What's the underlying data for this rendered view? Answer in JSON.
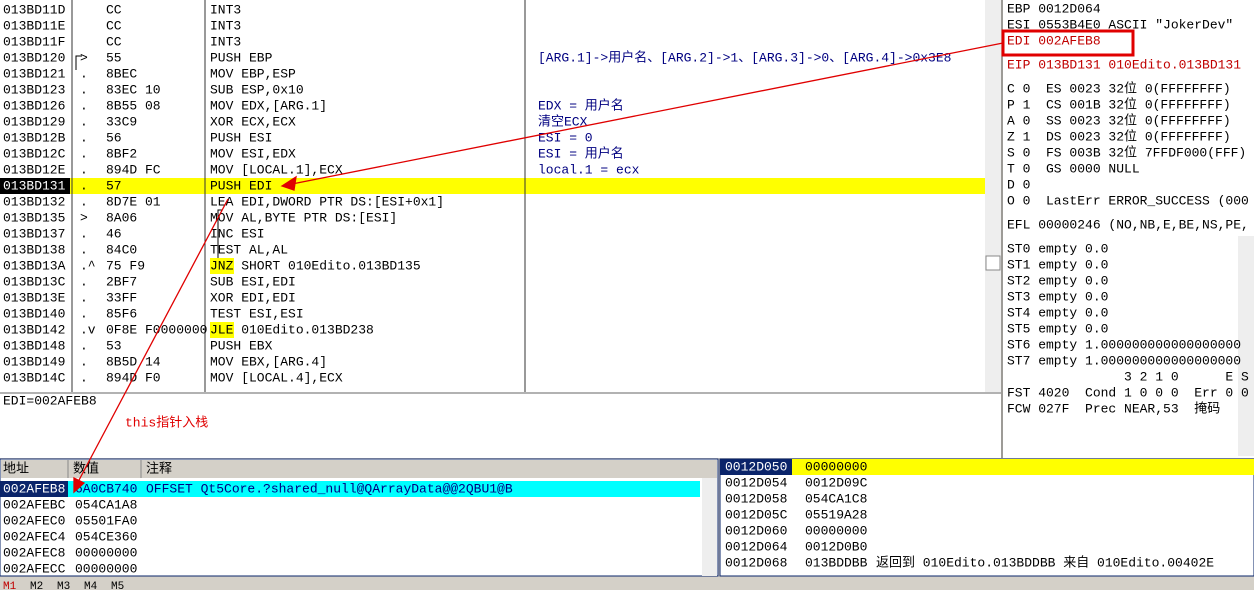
{
  "disasm": {
    "rows": [
      [
        "013BD11D",
        "",
        "CC",
        "INT3",
        ""
      ],
      [
        "013BD11E",
        "",
        "CC",
        "INT3",
        ""
      ],
      [
        "013BD11F",
        "",
        "CC",
        "INT3",
        ""
      ],
      [
        "013BD120",
        ">",
        "55",
        "PUSH EBP",
        "[ARG.1]->用户名、[ARG.2]->1、[ARG.3]->0、[ARG.4]->0x3E8"
      ],
      [
        "013BD121",
        ".",
        "8BEC",
        "MOV EBP,ESP",
        ""
      ],
      [
        "013BD123",
        ".",
        "83EC 10",
        "SUB ESP,0x10",
        ""
      ],
      [
        "013BD126",
        ".",
        "8B55 08",
        "MOV EDX,[ARG.1]",
        "EDX = 用户名"
      ],
      [
        "013BD129",
        ".",
        "33C9",
        "XOR ECX,ECX",
        "清空ECX"
      ],
      [
        "013BD12B",
        ".",
        "56",
        "PUSH ESI",
        "ESI = 0"
      ],
      [
        "013BD12C",
        ".",
        "8BF2",
        "MOV ESI,EDX",
        "ESI = 用户名"
      ],
      [
        "013BD12E",
        ".",
        "894D FC",
        "MOV [LOCAL.1],ECX",
        "local.1 = ecx"
      ],
      [
        "013BD131",
        ".",
        "57",
        "PUSH EDI",
        ""
      ],
      [
        "013BD132",
        ".",
        "8D7E 01",
        "LEA EDI,DWORD PTR DS:[ESI+0x1]",
        ""
      ],
      [
        "013BD135",
        ">",
        "8A06",
        "MOV AL,BYTE PTR DS:[ESI]",
        ""
      ],
      [
        "013BD137",
        ".",
        "46",
        "INC ESI",
        ""
      ],
      [
        "013BD138",
        ".",
        "84C0",
        "TEST AL,AL",
        ""
      ],
      [
        "013BD13A",
        ".^",
        "75 F9",
        "JNZ SHORT 010Edito.013BD135",
        ""
      ],
      [
        "013BD13C",
        ".",
        "2BF7",
        "SUB ESI,EDI",
        ""
      ],
      [
        "013BD13E",
        ".",
        "33FF",
        "XOR EDI,EDI",
        ""
      ],
      [
        "013BD140",
        ".",
        "85F6",
        "TEST ESI,ESI",
        ""
      ],
      [
        "013BD142",
        ".v",
        "0F8E F0000000",
        "JLE 010Edito.013BD238",
        ""
      ],
      [
        "013BD148",
        ".",
        "53",
        "PUSH EBX",
        ""
      ],
      [
        "013BD149",
        ".",
        "8B5D 14",
        "MOV EBX,[ARG.4]",
        ""
      ],
      [
        "013BD14C",
        ".",
        "894D F0",
        "MOV [LOCAL.4],ECX",
        ""
      ]
    ]
  },
  "registers": {
    "groups": [
      [
        "EBP 0012D064",
        "ESI 0553B4E0 ASCII \"JokerDev\"",
        "EDI 002AFEB8"
      ],
      [
        "EIP 013BD131 010Edito.013BD131"
      ],
      [
        "C 0  ES 0023 32位 0(FFFFFFFF)",
        "P 1  CS 001B 32位 0(FFFFFFFF)",
        "A 0  SS 0023 32位 0(FFFFFFFF)",
        "Z 1  DS 0023 32位 0(FFFFFFFF)",
        "S 0  FS 003B 32位 7FFDF000(FFF)",
        "T 0  GS 0000 NULL",
        "D 0",
        "O 0  LastErr ERROR_SUCCESS (000"
      ],
      [
        "EFL 00000246 (NO,NB,E,BE,NS,PE,"
      ],
      [
        "ST0 empty 0.0",
        "ST1 empty 0.0",
        "ST2 empty 0.0",
        "ST3 empty 0.0",
        "ST4 empty 0.0",
        "ST5 empty 0.0",
        "ST6 empty 1.000000000000000000",
        "ST7 empty 1.000000000000000000",
        "               3 2 1 0      E S",
        "FST 4020  Cond 1 0 0 0  Err 0 0",
        "FCW 027F  Prec NEAR,53  掩码"
      ]
    ]
  },
  "info": "EDI=002AFEB8",
  "annotation": "this指针入栈",
  "dump": {
    "headers": [
      "地址",
      "数值",
      "注释"
    ],
    "rows": [
      [
        "002AFEB8",
        "6A0CB740",
        "OFFSET Qt5Core.?shared_null@QArrayData@@2QBU1@B"
      ],
      [
        "002AFEBC",
        "054CA1A8",
        ""
      ],
      [
        "002AFEC0",
        "05501FA0",
        ""
      ],
      [
        "002AFEC4",
        "054CE360",
        ""
      ],
      [
        "002AFEC8",
        "00000000",
        ""
      ],
      [
        "002AFECC",
        "00000000",
        ""
      ]
    ]
  },
  "stack": {
    "rows": [
      [
        "0012D050",
        "00000000",
        ""
      ],
      [
        "0012D054",
        "0012D09C",
        ""
      ],
      [
        "0012D058",
        "054CA1C8",
        ""
      ],
      [
        "0012D05C",
        "05519A28",
        ""
      ],
      [
        "0012D060",
        "00000000",
        ""
      ],
      [
        "0012D064",
        "0012D0B0",
        ""
      ],
      [
        "0012D068",
        "013BDDBB",
        "返回到 010Edito.013BDDBB 来自 010Edito.00402E"
      ]
    ]
  },
  "statusbar": [
    "M1",
    "M2",
    "M3",
    "M4",
    "M5"
  ]
}
